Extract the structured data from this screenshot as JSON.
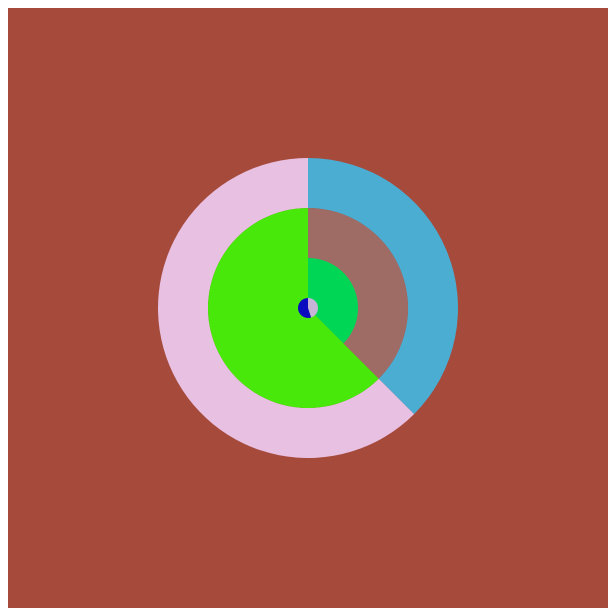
{
  "chart_data": {
    "type": "pie",
    "background": "#a64b3c",
    "rings": [
      {
        "values": [
          37.5,
          62.5
        ],
        "colors": [
          "#4badd2",
          "#e8c0e2"
        ]
      },
      {
        "values": [
          37.5,
          62.5
        ],
        "colors": [
          "#9e6b65",
          "#47e80a"
        ]
      },
      {
        "values": [
          37.5,
          62.5
        ],
        "colors": [
          "#00d656",
          "#47e80a"
        ]
      },
      {
        "values": [
          45,
          55
        ],
        "colors": [
          "#c8b4d6",
          "#0b0bc0"
        ]
      }
    ]
  }
}
